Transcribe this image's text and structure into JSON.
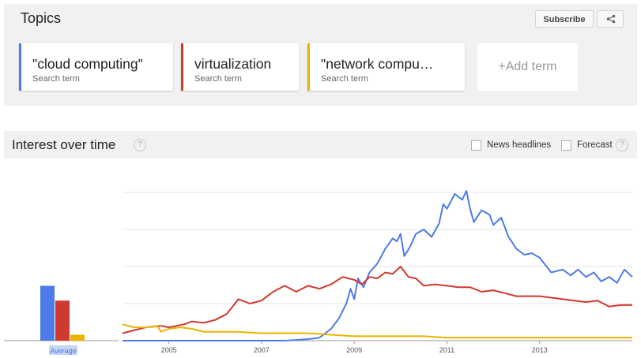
{
  "topics": {
    "title": "Topics",
    "subscribe_label": "Subscribe",
    "share_icon": "share-icon",
    "terms": [
      {
        "name": "\"cloud computing\"",
        "type": "Search term",
        "color": "#4d7be7"
      },
      {
        "name": "virtualization",
        "type": "Search term",
        "color": "#cf3a2e"
      },
      {
        "name": "\"network compu…",
        "type": "Search term",
        "color": "#eab301"
      }
    ],
    "add_term_label": "+Add term"
  },
  "interest": {
    "title": "Interest over time",
    "help_icon": "?",
    "news_headlines_label": "News headlines",
    "news_headlines_checked": false,
    "forecast_label": "Forecast",
    "forecast_checked": false,
    "forecast_help_icon": "?"
  },
  "chart_data": {
    "type": "line",
    "xlabel": "",
    "ylabel": "",
    "x_start": "2004-01",
    "x_end": "2014-12",
    "x_ticks": [
      "2005",
      "2007",
      "2009",
      "2011",
      "2013"
    ],
    "ylim": [
      0,
      100
    ],
    "grid": true,
    "average_label": "Average",
    "averages": [
      37,
      27,
      4
    ],
    "series": [
      {
        "name": "\"cloud computing\"",
        "color": "#4d7be7",
        "points": [
          [
            2004.0,
            0
          ],
          [
            2007.5,
            0
          ],
          [
            2008.0,
            1
          ],
          [
            2008.25,
            2
          ],
          [
            2008.5,
            8
          ],
          [
            2008.67,
            15
          ],
          [
            2008.83,
            25
          ],
          [
            2008.92,
            35
          ],
          [
            2009.0,
            28
          ],
          [
            2009.08,
            42
          ],
          [
            2009.2,
            36
          ],
          [
            2009.33,
            46
          ],
          [
            2009.5,
            52
          ],
          [
            2009.67,
            62
          ],
          [
            2009.83,
            69
          ],
          [
            2009.92,
            67
          ],
          [
            2010.0,
            72
          ],
          [
            2010.08,
            57
          ],
          [
            2010.2,
            63
          ],
          [
            2010.33,
            72
          ],
          [
            2010.5,
            75
          ],
          [
            2010.67,
            70
          ],
          [
            2010.83,
            79
          ],
          [
            2010.92,
            92
          ],
          [
            2011.0,
            89
          ],
          [
            2011.17,
            99
          ],
          [
            2011.33,
            95
          ],
          [
            2011.42,
            101
          ],
          [
            2011.5,
            89
          ],
          [
            2011.58,
            80
          ],
          [
            2011.75,
            88
          ],
          [
            2011.92,
            85
          ],
          [
            2012.0,
            78
          ],
          [
            2012.17,
            83
          ],
          [
            2012.33,
            70
          ],
          [
            2012.5,
            62
          ],
          [
            2012.67,
            58
          ],
          [
            2012.83,
            59
          ],
          [
            2013.0,
            56
          ],
          [
            2013.25,
            46
          ],
          [
            2013.5,
            48
          ],
          [
            2013.67,
            44
          ],
          [
            2013.83,
            48
          ],
          [
            2014.0,
            43
          ],
          [
            2014.17,
            46
          ],
          [
            2014.33,
            40
          ],
          [
            2014.5,
            43
          ],
          [
            2014.67,
            39
          ],
          [
            2014.83,
            48
          ],
          [
            2015.0,
            43
          ]
        ]
      },
      {
        "name": "virtualization",
        "color": "#cf3a2e",
        "points": [
          [
            2004.0,
            5
          ],
          [
            2004.5,
            9
          ],
          [
            2004.83,
            10
          ],
          [
            2005.0,
            9
          ],
          [
            2005.33,
            11
          ],
          [
            2005.5,
            13
          ],
          [
            2005.75,
            12
          ],
          [
            2006.0,
            14
          ],
          [
            2006.25,
            18
          ],
          [
            2006.5,
            28
          ],
          [
            2006.75,
            25
          ],
          [
            2007.0,
            27
          ],
          [
            2007.25,
            33
          ],
          [
            2007.5,
            37
          ],
          [
            2007.75,
            33
          ],
          [
            2008.0,
            37
          ],
          [
            2008.25,
            35
          ],
          [
            2008.5,
            38
          ],
          [
            2008.75,
            43
          ],
          [
            2009.0,
            41
          ],
          [
            2009.17,
            38
          ],
          [
            2009.33,
            43
          ],
          [
            2009.5,
            42
          ],
          [
            2009.67,
            46
          ],
          [
            2009.83,
            45
          ],
          [
            2010.0,
            50
          ],
          [
            2010.17,
            43
          ],
          [
            2010.33,
            42
          ],
          [
            2010.5,
            37
          ],
          [
            2010.75,
            38
          ],
          [
            2011.0,
            37
          ],
          [
            2011.25,
            36
          ],
          [
            2011.5,
            36
          ],
          [
            2011.75,
            33
          ],
          [
            2012.0,
            34
          ],
          [
            2012.25,
            32
          ],
          [
            2012.5,
            30
          ],
          [
            2012.75,
            30
          ],
          [
            2013.0,
            30
          ],
          [
            2013.5,
            28
          ],
          [
            2014.0,
            26
          ],
          [
            2014.25,
            27
          ],
          [
            2014.5,
            23
          ],
          [
            2014.75,
            24
          ],
          [
            2015.0,
            24
          ]
        ]
      },
      {
        "name": "\"network compu…",
        "color": "#eab301",
        "points": [
          [
            2004.0,
            11
          ],
          [
            2004.25,
            9
          ],
          [
            2004.5,
            9
          ],
          [
            2004.75,
            10
          ],
          [
            2004.83,
            6
          ],
          [
            2005.0,
            8
          ],
          [
            2005.25,
            9
          ],
          [
            2005.5,
            8
          ],
          [
            2005.75,
            6
          ],
          [
            2006.0,
            6
          ],
          [
            2006.5,
            6
          ],
          [
            2007.0,
            5
          ],
          [
            2007.5,
            5
          ],
          [
            2008.0,
            5
          ],
          [
            2008.5,
            4
          ],
          [
            2009.0,
            3
          ],
          [
            2009.5,
            3
          ],
          [
            2010.0,
            3
          ],
          [
            2010.5,
            3
          ],
          [
            2011.0,
            2
          ],
          [
            2011.5,
            2
          ],
          [
            2012.0,
            2
          ],
          [
            2012.5,
            2
          ],
          [
            2013.0,
            2
          ],
          [
            2013.5,
            2
          ],
          [
            2014.0,
            2
          ],
          [
            2014.5,
            2
          ],
          [
            2015.0,
            2
          ]
        ]
      }
    ]
  }
}
